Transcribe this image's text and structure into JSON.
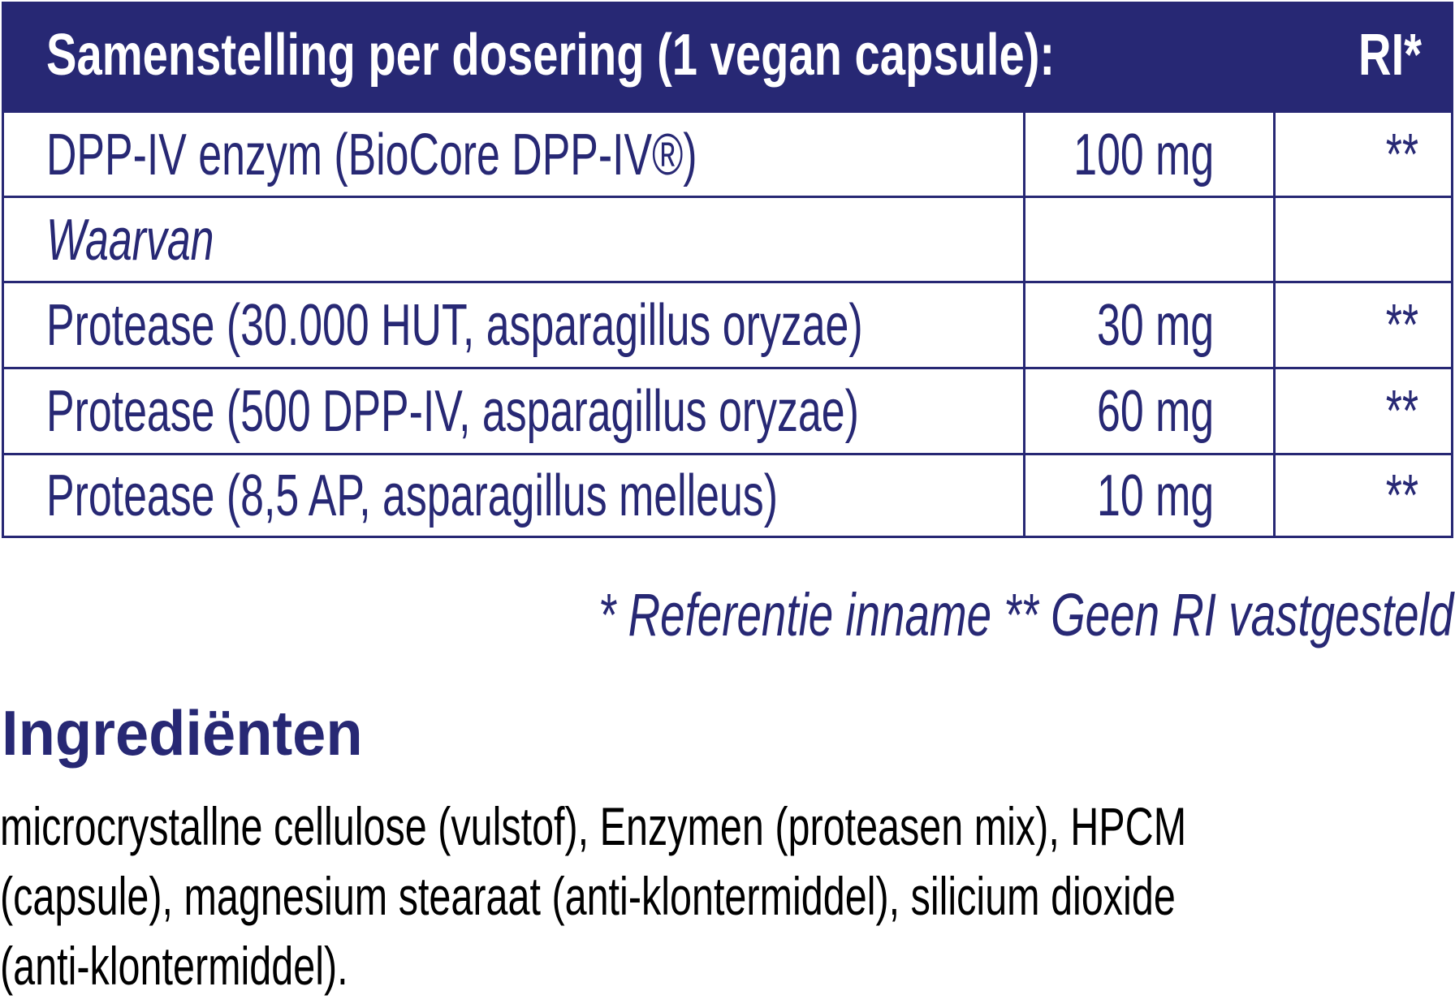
{
  "table": {
    "header": {
      "title": "Samenstelling per dosering (1 vegan capsule):",
      "ri": "RI*"
    },
    "rows": [
      {
        "name": "DPP-IV enzym (BioCore DPP-IV®)",
        "amount": "100 mg",
        "ri": "**",
        "italic": false
      },
      {
        "name": "Waarvan",
        "amount": "",
        "ri": "",
        "italic": true
      },
      {
        "name": "Protease (30.000 HUT, asparagillus oryzae)",
        "amount": "30 mg",
        "ri": "**",
        "italic": false
      },
      {
        "name": "Protease (500 DPP-IV, asparagillus oryzae)",
        "amount": "60 mg",
        "ri": "**",
        "italic": false
      },
      {
        "name": "Protease (8,5 AP, asparagillus melleus)",
        "amount": "10 mg",
        "ri": "**",
        "italic": false
      }
    ]
  },
  "footnote": "* Referentie inname  ** Geen RI vastgesteld",
  "ingredients": {
    "title": "Ingrediënten",
    "lines": [
      "microcrystallne cellulose (vulstof), Enzymen (proteasen mix), HPCM",
      "(capsule), magnesium stearaat (anti-klontermiddel), silicium dioxide",
      "(anti-klontermiddel)."
    ]
  },
  "colors": {
    "navy": "#272874",
    "text": "#000000",
    "header_text": "#ffffff"
  }
}
